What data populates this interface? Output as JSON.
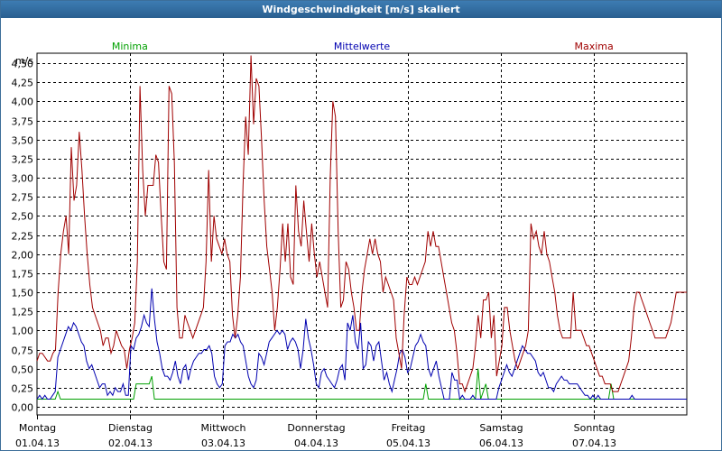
{
  "window": {
    "title": "Windgeschwindigkeit [m/s] skaliert"
  },
  "chart_data": {
    "type": "line",
    "ylabel": "m/s",
    "ylim": [
      -0.1,
      4.75
    ],
    "yticks": [
      "4,50",
      "4,25",
      "4,00",
      "3,75",
      "3,50",
      "3,25",
      "3,00",
      "2,75",
      "2,50",
      "2,25",
      "2,00",
      "1,75",
      "1,50",
      "1,25",
      "1,00",
      "0,75",
      "0,50",
      "0,25",
      "0,00"
    ],
    "xlim": [
      0,
      7
    ],
    "days": [
      {
        "day": "Montag",
        "date": "01.04.13"
      },
      {
        "day": "Dienstag",
        "date": "02.04.13"
      },
      {
        "day": "Mittwoch",
        "date": "03.04.13"
      },
      {
        "day": "Donnerstag",
        "date": "04.04.13"
      },
      {
        "day": "Freitag",
        "date": "05.04.13"
      },
      {
        "day": "Samstag",
        "date": "06.04.13"
      },
      {
        "day": "Sonntag",
        "date": "07.04.13"
      }
    ],
    "grid": true,
    "legend": "top",
    "series": [
      {
        "name": "Minima",
        "color": "#00a000",
        "values": [
          0.1,
          0.1,
          0.1,
          0.1,
          0.1,
          0.1,
          0.1,
          0.1,
          0.2,
          0.1,
          0.1,
          0.1,
          0.1,
          0.1,
          0.1,
          0.1,
          0.1,
          0.1,
          0.1,
          0.1,
          0.1,
          0.1,
          0.1,
          0.1,
          0.1,
          0.1,
          0.1,
          0.1,
          0.1,
          0.1,
          0.1,
          0.1,
          0.1,
          0.1,
          0.1,
          0.1,
          0.1,
          0.1,
          0.3,
          0.3,
          0.3,
          0.3,
          0.3,
          0.3,
          0.4,
          0.1,
          0.1,
          0.1,
          0.1,
          0.1,
          0.1,
          0.1,
          0.1,
          0.1,
          0.1,
          0.1,
          0.1,
          0.1,
          0.1,
          0.1,
          0.1,
          0.1,
          0.1,
          0.1,
          0.1,
          0.1,
          0.1,
          0.1,
          0.1,
          0.1,
          0.1,
          0.1,
          0.1,
          0.1,
          0.1,
          0.1,
          0.1,
          0.1,
          0.1,
          0.1,
          0.1,
          0.1,
          0.1,
          0.1,
          0.1,
          0.1,
          0.1,
          0.1,
          0.1,
          0.1,
          0.1,
          0.1,
          0.1,
          0.1,
          0.1,
          0.1,
          0.1,
          0.1,
          0.1,
          0.1,
          0.1,
          0.1,
          0.1,
          0.1,
          0.1,
          0.1,
          0.1,
          0.1,
          0.1,
          0.1,
          0.1,
          0.1,
          0.1,
          0.1,
          0.1,
          0.1,
          0.1,
          0.1,
          0.1,
          0.1,
          0.1,
          0.1,
          0.1,
          0.1,
          0.1,
          0.1,
          0.1,
          0.1,
          0.1,
          0.1,
          0.1,
          0.1,
          0.1,
          0.1,
          0.1,
          0.1,
          0.1,
          0.1,
          0.1,
          0.1,
          0.1,
          0.1,
          0.1,
          0.1,
          0.1,
          0.1,
          0.1,
          0.1,
          0.1,
          0.3,
          0.1,
          0.1,
          0.1,
          0.1,
          0.1,
          0.1,
          0.1,
          0.1,
          0.1,
          0.1,
          0.1,
          0.1,
          0.1,
          0.1,
          0.1,
          0.1,
          0.1,
          0.1,
          0.1,
          0.5,
          0.1,
          0.2,
          0.3,
          0.1,
          0.1,
          0.1,
          0.1,
          0.1,
          0.1,
          0.1,
          0.1,
          0.1,
          0.1,
          0.1,
          0.1,
          0.1,
          0.1,
          0.1,
          0.1,
          0.1,
          0.1,
          0.1,
          0.1,
          0.1,
          0.1,
          0.1,
          0.1,
          0.1,
          0.1,
          0.1,
          0.1,
          0.1,
          0.1,
          0.1,
          0.1,
          0.1,
          0.1,
          0.1,
          0.1,
          0.1,
          0.1,
          0.1,
          0.1,
          0.1,
          0.1,
          0.1,
          0.1,
          0.1,
          0.1,
          0.1,
          0.3,
          0.1,
          0.1,
          0.1,
          0.1,
          0.1,
          0.1,
          0.1,
          0.1,
          0.1,
          0.1,
          0.1,
          0.1,
          0.1,
          0.1,
          0.1,
          0.1,
          0.1,
          0.1,
          0.1,
          0.1,
          0.1,
          0.1,
          0.1,
          0.1,
          0.1,
          0.1,
          0.1,
          0.1,
          0.1
        ]
      },
      {
        "name": "Mittelwerte",
        "color": "#0000b0",
        "values": [
          0.1,
          0.15,
          0.1,
          0.15,
          0.1,
          0.1,
          0.15,
          0.2,
          0.65,
          0.75,
          0.85,
          0.95,
          1.05,
          1.0,
          1.1,
          1.05,
          0.95,
          0.85,
          0.8,
          0.6,
          0.5,
          0.55,
          0.45,
          0.35,
          0.25,
          0.3,
          0.3,
          0.15,
          0.2,
          0.15,
          0.25,
          0.2,
          0.2,
          0.3,
          0.15,
          0.15,
          0.8,
          0.75,
          0.9,
          0.95,
          1.05,
          1.2,
          1.1,
          1.05,
          1.55,
          1.15,
          0.85,
          0.7,
          0.5,
          0.4,
          0.4,
          0.35,
          0.45,
          0.6,
          0.4,
          0.3,
          0.5,
          0.55,
          0.35,
          0.5,
          0.6,
          0.65,
          0.7,
          0.7,
          0.75,
          0.75,
          0.8,
          0.7,
          0.4,
          0.3,
          0.25,
          0.3,
          0.8,
          0.85,
          0.85,
          0.95,
          0.9,
          0.95,
          0.85,
          0.8,
          0.6,
          0.4,
          0.3,
          0.25,
          0.35,
          0.7,
          0.65,
          0.55,
          0.7,
          0.85,
          0.9,
          0.95,
          1.0,
          0.95,
          1.0,
          0.95,
          0.75,
          0.85,
          0.9,
          0.85,
          0.75,
          0.5,
          0.75,
          1.15,
          0.9,
          0.75,
          0.55,
          0.3,
          0.25,
          0.45,
          0.5,
          0.4,
          0.35,
          0.3,
          0.25,
          0.35,
          0.5,
          0.55,
          0.35,
          1.1,
          1.0,
          1.2,
          0.85,
          0.75,
          1.1,
          0.5,
          0.55,
          0.85,
          0.8,
          0.6,
          0.8,
          0.85,
          0.6,
          0.35,
          0.45,
          0.3,
          0.2,
          0.35,
          0.5,
          0.7,
          0.75,
          0.65,
          0.45,
          0.5,
          0.65,
          0.8,
          0.85,
          0.95,
          0.85,
          0.8,
          0.5,
          0.4,
          0.5,
          0.6,
          0.4,
          0.25,
          0.1,
          0.1,
          0.1,
          0.45,
          0.35,
          0.35,
          0.1,
          0.15,
          0.1,
          0.1,
          0.1,
          0.15,
          0.1,
          0.1,
          0.1,
          0.1,
          0.1,
          0.1,
          0.1,
          0.1,
          0.1,
          0.25,
          0.35,
          0.45,
          0.55,
          0.45,
          0.4,
          0.5,
          0.6,
          0.7,
          0.8,
          0.75,
          0.7,
          0.7,
          0.65,
          0.6,
          0.45,
          0.4,
          0.45,
          0.35,
          0.25,
          0.25,
          0.2,
          0.3,
          0.35,
          0.4,
          0.35,
          0.35,
          0.3,
          0.3,
          0.3,
          0.3,
          0.25,
          0.2,
          0.15,
          0.15,
          0.1,
          0.15,
          0.1,
          0.15,
          0.1,
          0.1,
          0.1,
          0.1,
          0.1,
          0.1,
          0.1,
          0.1,
          0.1,
          0.1,
          0.1,
          0.1,
          0.15,
          0.1,
          0.1,
          0.1,
          0.1,
          0.1,
          0.1,
          0.1,
          0.1,
          0.1,
          0.1,
          0.1,
          0.1,
          0.1,
          0.1,
          0.1,
          0.1,
          0.1,
          0.1,
          0.1,
          0.1,
          0.1
        ]
      },
      {
        "name": "Maxima",
        "color": "#a00000",
        "values": [
          0.6,
          0.7,
          0.7,
          0.65,
          0.6,
          0.6,
          0.7,
          0.75,
          1.5,
          2.0,
          2.3,
          2.5,
          2.0,
          3.4,
          2.7,
          2.9,
          3.6,
          3.1,
          2.5,
          2.0,
          1.6,
          1.3,
          1.2,
          1.1,
          1.0,
          0.8,
          0.9,
          0.9,
          0.7,
          0.8,
          1.0,
          0.9,
          0.8,
          0.75,
          0.5,
          0.75,
          0.9,
          1.1,
          1.9,
          4.2,
          3.1,
          2.5,
          2.9,
          2.9,
          2.9,
          3.3,
          3.2,
          2.5,
          1.9,
          1.8,
          4.2,
          4.1,
          3.2,
          1.3,
          0.9,
          0.9,
          1.2,
          1.1,
          1.0,
          0.9,
          1.0,
          1.1,
          1.2,
          1.3,
          1.9,
          3.1,
          1.9,
          2.5,
          2.2,
          2.1,
          2.0,
          2.2,
          2.0,
          1.9,
          1.2,
          0.9,
          1.2,
          1.7,
          2.9,
          3.8,
          3.3,
          4.6,
          3.7,
          4.3,
          4.2,
          3.5,
          2.7,
          2.1,
          1.8,
          1.5,
          1.0,
          1.3,
          1.8,
          2.4,
          1.9,
          2.4,
          1.7,
          1.6,
          2.9,
          2.3,
          2.1,
          2.7,
          2.3,
          1.9,
          2.4,
          2.0,
          1.7,
          1.9,
          1.7,
          1.5,
          1.3,
          3.0,
          4.0,
          3.8,
          2.3,
          1.3,
          1.4,
          1.9,
          1.8,
          1.5,
          1.3,
          1.0,
          1.0,
          1.5,
          1.8,
          2.0,
          2.2,
          2.0,
          2.2,
          2.0,
          1.9,
          1.5,
          1.7,
          1.6,
          1.5,
          1.4,
          0.9,
          0.7,
          0.5,
          1.2,
          1.7,
          1.6,
          1.6,
          1.7,
          1.6,
          1.7,
          1.8,
          1.9,
          2.3,
          2.1,
          2.3,
          2.1,
          2.1,
          1.9,
          1.7,
          1.5,
          1.3,
          1.1,
          1.0,
          0.7,
          0.3,
          0.3,
          0.2,
          0.3,
          0.4,
          0.5,
          0.8,
          1.2,
          0.9,
          1.4,
          1.4,
          1.5,
          0.9,
          1.2,
          0.4,
          0.6,
          0.8,
          1.3,
          1.3,
          1.0,
          0.8,
          0.6,
          0.5,
          0.6,
          0.7,
          0.8,
          1.0,
          2.4,
          2.2,
          2.3,
          2.1,
          2.0,
          2.3,
          2.0,
          1.9,
          1.7,
          1.5,
          1.2,
          1.0,
          0.9,
          0.9,
          0.9,
          0.9,
          1.5,
          1.0,
          1.0,
          1.0,
          0.9,
          0.8,
          0.8,
          0.7,
          0.6,
          0.5,
          0.4,
          0.4,
          0.3,
          0.3,
          0.3,
          0.2,
          0.2,
          0.2,
          0.3,
          0.4,
          0.5,
          0.6,
          0.9,
          1.3,
          1.5,
          1.5,
          1.4,
          1.3,
          1.2,
          1.1,
          1.0,
          0.9,
          0.9,
          0.9,
          0.9,
          0.9,
          1.0,
          1.1,
          1.3,
          1.5,
          1.5,
          1.5,
          1.5,
          1.5
        ]
      }
    ]
  }
}
